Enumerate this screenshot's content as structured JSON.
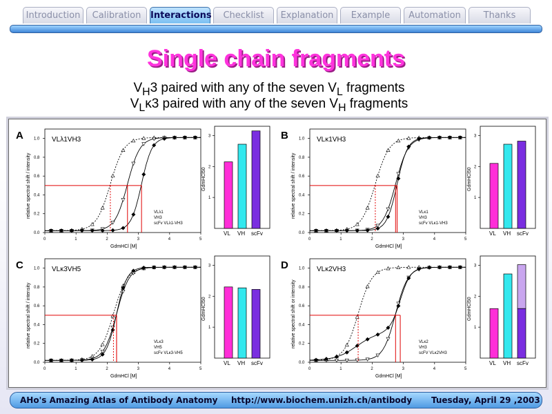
{
  "tabs": [
    {
      "label": "Introduction",
      "active": false
    },
    {
      "label": "Calibration",
      "active": false
    },
    {
      "label": "Interactions",
      "active": true
    },
    {
      "label": "Checklist",
      "active": false
    },
    {
      "label": "Explanation",
      "active": false
    },
    {
      "label": "Example",
      "active": false
    },
    {
      "label": "Automation",
      "active": false
    },
    {
      "label": "Thanks",
      "active": false
    }
  ],
  "slide": {
    "title": "Single chain fragments",
    "line1": {
      "a": "V",
      "a_sub": "H",
      "b": "3 paired with any of the seven V",
      "b_sub": "L",
      "c": " fragments"
    },
    "line2": {
      "a": "V",
      "a_sub": "L",
      "b": "κ3 paired with any of the seven V",
      "b_sub": "H",
      "c": " fragments"
    }
  },
  "footer": {
    "left": "AHo's Amazing Atlas of Antibody Anatomy",
    "center": "http://www.biochem.unizh.ch/antibody",
    "right": "Tuesday, April 29 ,2003"
  },
  "colors": {
    "vl": "#ff2ed8",
    "vh": "#33e8ee",
    "scfv": "#7a2ee0",
    "scfv_light": "#c9a6ef",
    "guide": "#e00000"
  },
  "chart_data": [
    {
      "panel": "A",
      "type": "line",
      "title": "VLλ1VH3",
      "xlabel": "GdmHCl [M]",
      "ylabel": "relative spectral shift / intensity",
      "xlim": [
        0,
        5
      ],
      "ylim": [
        0,
        1.1
      ],
      "xticks": [
        0,
        1,
        2,
        3,
        4,
        5
      ],
      "yticks": [
        0,
        0.2,
        0.4,
        0.6,
        0.8,
        1.0
      ],
      "legend": [
        "VLλ1",
        "VH3",
        "scFv VLλ1-VH3"
      ],
      "midpoints": {
        "VL": 2.1,
        "VH": 2.65,
        "scFv": 3.1
      },
      "bars": {
        "type": "bar",
        "ylabel": "GdmHCl50",
        "categories": [
          "VL",
          "VH",
          "scFv"
        ],
        "values": [
          2.15,
          2.72,
          3.15
        ],
        "ylim": [
          0,
          3.3
        ]
      }
    },
    {
      "panel": "B",
      "type": "line",
      "title": "VLκ1VH3",
      "xlabel": "GdmHCl [M]",
      "ylabel": "relative spectral shift / intensity",
      "xlim": [
        0,
        5
      ],
      "ylim": [
        0,
        1.1
      ],
      "xticks": [
        0,
        1,
        2,
        3,
        4,
        5
      ],
      "yticks": [
        0,
        0.2,
        0.4,
        0.6,
        0.8,
        1.0
      ],
      "legend": [
        "VLκ1",
        "VH3",
        "scFv VLκ1-VH3"
      ],
      "midpoints": {
        "VL": 2.1,
        "VH": 2.75,
        "scFv": 2.8
      },
      "bars": {
        "type": "bar",
        "ylabel": "GdmHCl50",
        "categories": [
          "VL",
          "VH",
          "scFv"
        ],
        "values": [
          2.1,
          2.72,
          2.82
        ],
        "ylim": [
          0,
          3.3
        ]
      }
    },
    {
      "panel": "C",
      "type": "line",
      "title": "VLκ3VH5",
      "xlabel": "GdmHCl [M]",
      "ylabel": "relative spectral shift / intensity",
      "xlim": [
        0,
        5
      ],
      "ylim": [
        0,
        1.1
      ],
      "xticks": [
        0,
        1,
        2,
        3,
        4,
        5
      ],
      "yticks": [
        0,
        0.2,
        0.4,
        0.6,
        0.8,
        1.0
      ],
      "legend": [
        "VLκ3",
        "VH5",
        "scFv VLκ3-VH5"
      ],
      "midpoints": {
        "VL": 2.2,
        "VH": 2.3,
        "scFv": 2.3
      },
      "bars": {
        "type": "bar",
        "ylabel": "GdmHCl50",
        "categories": [
          "VL",
          "VH",
          "scFv"
        ],
        "values": [
          2.3,
          2.27,
          2.22
        ],
        "ylim": [
          0,
          3.3
        ]
      }
    },
    {
      "panel": "D",
      "type": "line",
      "title": "VLκ2VH3",
      "xlabel": "GdmHCl [M]",
      "ylabel": "relative spectral shift or intensity",
      "xlim": [
        0,
        5
      ],
      "ylim": [
        0,
        1.1
      ],
      "xticks": [
        0,
        1,
        2,
        3,
        4,
        5
      ],
      "yticks": [
        0,
        0.2,
        0.4,
        0.6,
        0.8,
        1.0
      ],
      "legend": [
        "VLκ2",
        "VH3",
        "scFV VLκ2VH3"
      ],
      "midpoints": {
        "VL": 1.55,
        "VH": 2.75,
        "scFv": 2.9
      },
      "bars": {
        "type": "bar",
        "ylabel": "GdmHCl50",
        "categories": [
          "VL",
          "VH",
          "scFv"
        ],
        "values": [
          1.6,
          2.72,
          3.02
        ],
        "scFv_split": 1.6,
        "ylim": [
          0,
          3.3
        ]
      }
    }
  ]
}
